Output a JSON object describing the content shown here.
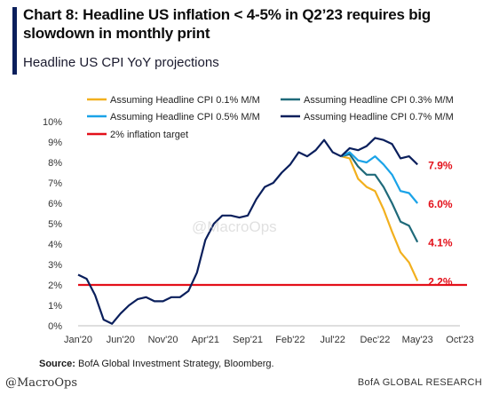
{
  "header": {
    "title": "Chart 8: Headline US inflation < 4-5% in Q2’23 requires big slowdown in monthly print",
    "subtitle": "Headline US CPI YoY projections"
  },
  "footer": {
    "source_label": "Source:",
    "source_text": " BofA Global Investment Strategy, Bloomberg.",
    "handle": "@MacroOps",
    "research": "BofA GLOBAL RESEARCH",
    "center_watermark": "@MacroOps"
  },
  "chart_data": {
    "type": "line",
    "x_tick_labels": [
      "Jan'20",
      "Jun'20",
      "Nov'20",
      "Apr'21",
      "Sep'21",
      "Feb'22",
      "Jul'22",
      "Dec'22",
      "May'23",
      "Oct'23"
    ],
    "y_tick_labels": [
      "0%",
      "1%",
      "2%",
      "3%",
      "4%",
      "5%",
      "6%",
      "7%",
      "8%",
      "9%",
      "10%"
    ],
    "ylim": [
      0,
      10
    ],
    "x_range_months": [
      "Jan'20",
      "Oct'23"
    ],
    "grid": false,
    "legend_position": "top",
    "legend": [
      {
        "name": "Assuming Headline CPI 0.1% M/M",
        "color": "#f2b01e"
      },
      {
        "name": "Assuming Headline CPI 0.3% M/M",
        "color": "#1f6a7a"
      },
      {
        "name": "Assuming Headline CPI 0.5% M/M",
        "color": "#1aa3e8"
      },
      {
        "name": "Assuming Headline CPI 0.7% M/M",
        "color": "#0a1f5c"
      },
      {
        "name": "2% inflation target",
        "color": "#e3101a"
      }
    ],
    "historical": {
      "color": "#0a1f5c",
      "start": "Jan'20",
      "values": [
        2.5,
        2.3,
        1.5,
        0.3,
        0.1,
        0.6,
        1.0,
        1.3,
        1.4,
        1.2,
        1.2,
        1.4,
        1.4,
        1.7,
        2.6,
        4.2,
        5.0,
        5.4,
        5.4,
        5.3,
        5.4,
        6.2,
        6.8,
        7.0,
        7.5,
        7.9,
        8.5,
        8.3,
        8.6,
        9.1,
        8.5,
        8.3
      ]
    },
    "projections": [
      {
        "name": "Assuming Headline CPI 0.7% M/M",
        "color": "#0a1f5c",
        "start": "Aug'22",
        "values": [
          8.3,
          8.7,
          8.6,
          8.8,
          9.2,
          9.1,
          8.9,
          8.2,
          8.3,
          7.9
        ],
        "end_label": "7.9%"
      },
      {
        "name": "Assuming Headline CPI 0.5% M/M",
        "color": "#1aa3e8",
        "start": "Aug'22",
        "values": [
          8.3,
          8.5,
          8.1,
          8.0,
          8.3,
          7.9,
          7.4,
          6.6,
          6.5,
          6.0
        ],
        "end_label": "6.0%"
      },
      {
        "name": "Assuming Headline CPI 0.3% M/M",
        "color": "#1f6a7a",
        "start": "Aug'22",
        "values": [
          8.3,
          8.4,
          7.8,
          7.4,
          7.4,
          6.8,
          6.0,
          5.1,
          4.9,
          4.1
        ],
        "end_label": "4.1%"
      },
      {
        "name": "Assuming Headline CPI 0.1% M/M",
        "color": "#f2b01e",
        "start": "Aug'22",
        "values": [
          8.3,
          8.2,
          7.2,
          6.8,
          6.6,
          5.7,
          4.6,
          3.6,
          3.1,
          2.2
        ],
        "end_label": "2.2%"
      }
    ],
    "target_line": {
      "value": 2,
      "color": "#e3101a"
    },
    "end_label_color": "#e3101a"
  }
}
